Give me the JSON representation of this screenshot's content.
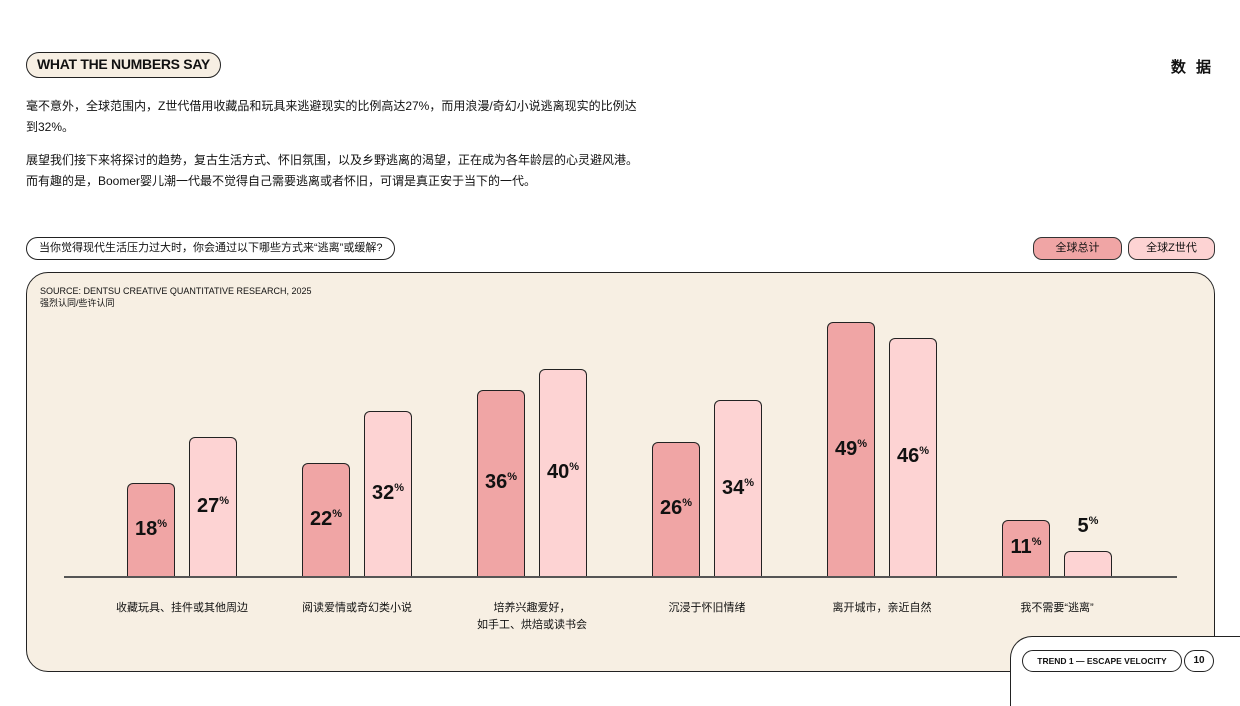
{
  "header": {
    "badge": "WHAT THE NUMBERS SAY",
    "section_title": "数 据"
  },
  "intro": {
    "p1": "毫不意外，全球范围内，Z世代借用收藏品和玩具来逃避现实的比例高达27%，而用浪漫/奇幻小说逃离现实的比例达到32%。",
    "p2": "展望我们接下来将探讨的趋势，复古生活方式、怀旧氛围，以及乡野逃离的渴望，正在成为各年龄层的心灵避风港。而有趣的是，Boomer婴儿潮一代最不觉得自己需要逃离或者怀旧，可谓是真正安于当下的一代。"
  },
  "question": "当你觉得现代生活压力过大时，你会通过以下哪些方式来“逃离”或缓解?",
  "colors": {
    "total": "#f0a5a5",
    "genz": "#fdd3d3",
    "panel": "#f7efe3"
  },
  "chart_data": {
    "type": "bar",
    "title": "",
    "source": "SOURCE: DENTSU CREATIVE QUANTITATIVE RESEARCH, 2025",
    "subtitle": "强烈认同/些许认同",
    "unit": "%",
    "legend_position": "top-right",
    "categories": [
      "收藏玩具、挂件或其他周边",
      "阅读爱情或奇幻类小说",
      "培养兴趣爱好，\n如手工、烘焙或读书会",
      "沉浸于怀旧情绪",
      "离开城市，亲近自然",
      "我不需要“逃离”"
    ],
    "series": [
      {
        "name": "全球总计",
        "values": [
          18,
          22,
          36,
          26,
          49,
          11
        ]
      },
      {
        "name": "全球Z世代",
        "values": [
          27,
          32,
          40,
          34,
          46,
          5
        ]
      }
    ],
    "ylim": [
      0,
      49
    ],
    "grid": false
  },
  "footer": {
    "trend": "TREND 1 — ESCAPE VELOCITY",
    "page": "10"
  }
}
